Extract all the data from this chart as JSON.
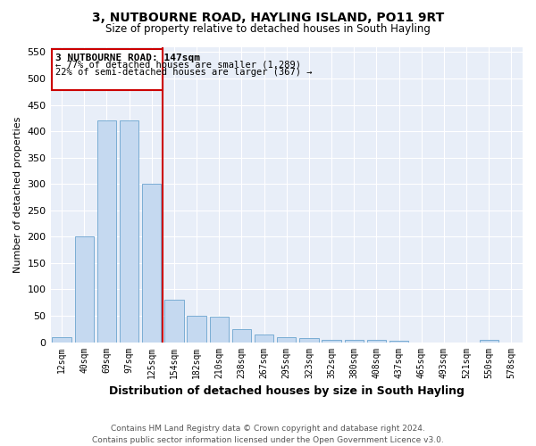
{
  "title": "3, NUTBOURNE ROAD, HAYLING ISLAND, PO11 9RT",
  "subtitle": "Size of property relative to detached houses in South Hayling",
  "xlabel": "Distribution of detached houses by size in South Hayling",
  "ylabel": "Number of detached properties",
  "footer": "Contains HM Land Registry data © Crown copyright and database right 2024.\nContains public sector information licensed under the Open Government Licence v3.0.",
  "categories": [
    "12sqm",
    "40sqm",
    "69sqm",
    "97sqm",
    "125sqm",
    "154sqm",
    "182sqm",
    "210sqm",
    "238sqm",
    "267sqm",
    "295sqm",
    "323sqm",
    "352sqm",
    "380sqm",
    "408sqm",
    "437sqm",
    "465sqm",
    "493sqm",
    "521sqm",
    "550sqm",
    "578sqm"
  ],
  "values": [
    10,
    200,
    420,
    420,
    300,
    80,
    50,
    48,
    25,
    15,
    10,
    8,
    5,
    4,
    4,
    3,
    0,
    0,
    0,
    5,
    0
  ],
  "bar_color": "#c5d9f0",
  "bar_edge_color": "#7aadd4",
  "vline_color": "#cc0000",
  "annotation_title": "3 NUTBOURNE ROAD: 147sqm",
  "annotation_line1": "← 77% of detached houses are smaller (1,289)",
  "annotation_line2": "22% of semi-detached houses are larger (367) →",
  "annotation_box_color": "#cc0000",
  "ylim": [
    0,
    560
  ],
  "yticks": [
    0,
    50,
    100,
    150,
    200,
    250,
    300,
    350,
    400,
    450,
    500,
    550
  ],
  "bg_color": "#e8eef8",
  "title_fontsize": 10,
  "subtitle_fontsize": 8.5
}
